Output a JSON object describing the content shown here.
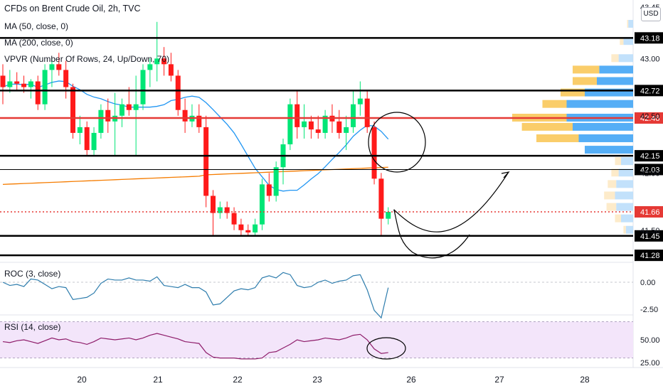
{
  "title": "CFDs on Brent Crude Oil, 2h, TVC",
  "indicators": {
    "ma50": "MA (50, close, 0)",
    "ma200": "MA (200, close, 0)",
    "vpvr": "VPVR (Number Of Rows, 24, Up/Down, 70)",
    "roc": "ROC (3, close)",
    "rsi": "RSI (14, close)"
  },
  "currency": "USD",
  "colors": {
    "up": "#26a69a",
    "up_bright": "#00e676",
    "down": "#ef5350",
    "down_bright": "#ff1a1a",
    "ma50": "#2196f3",
    "ma200": "#f57c00",
    "roc": "#2e7dad",
    "rsi": "#8e1c6a",
    "rsi_band": "#f3e5fa",
    "vpvr_up_strong": "#42a5f5",
    "vpvr_up_light": "#bbdefb",
    "vpvr_down_strong": "#f9c85a",
    "vpvr_down_light": "#fde9c4",
    "price_marker": "#e53935"
  },
  "chart_data": {
    "type": "candlestick",
    "symbol": "CFDs on Brent Crude Oil",
    "interval": "2h",
    "source": "TVC",
    "x_ticks": [
      "20",
      "21",
      "22",
      "23",
      "26",
      "27",
      "28"
    ],
    "price_ticks": [
      "43.45",
      "43.00",
      "42.50",
      "42.00",
      "41.50"
    ],
    "level_labels": [
      {
        "value": 43.18,
        "label": "43.18",
        "line_color": "#000000"
      },
      {
        "value": 42.72,
        "label": "42.72",
        "line_color": "#000000"
      },
      {
        "value": 42.48,
        "label": "42.48",
        "line_color": "#e53935"
      },
      {
        "value": 42.15,
        "label": "42.15",
        "line_color": "#000000"
      },
      {
        "value": 42.03,
        "label": "42.03",
        "line_color": "#000000"
      },
      {
        "value": 41.66,
        "label": "41.66",
        "line_color": "#e53935",
        "dotted": true
      },
      {
        "value": 41.45,
        "label": "41.45",
        "line_color": "#000000"
      },
      {
        "value": 41.28,
        "label": "41.28",
        "line_color": "#000000"
      }
    ],
    "candles": [
      {
        "o": 42.85,
        "h": 42.95,
        "l": 42.6,
        "c": 42.75
      },
      {
        "o": 42.75,
        "h": 42.9,
        "l": 42.7,
        "c": 42.8
      },
      {
        "o": 42.8,
        "h": 42.88,
        "l": 42.72,
        "c": 42.78
      },
      {
        "o": 42.78,
        "h": 42.85,
        "l": 42.7,
        "c": 42.75
      },
      {
        "o": 42.75,
        "h": 42.82,
        "l": 42.65,
        "c": 42.8
      },
      {
        "o": 42.8,
        "h": 42.85,
        "l": 42.55,
        "c": 42.6
      },
      {
        "o": 42.6,
        "h": 42.95,
        "l": 42.55,
        "c": 42.9
      },
      {
        "o": 42.9,
        "h": 43.0,
        "l": 42.75,
        "c": 42.95
      },
      {
        "o": 42.95,
        "h": 43.05,
        "l": 42.85,
        "c": 42.9
      },
      {
        "o": 42.9,
        "h": 42.98,
        "l": 42.65,
        "c": 42.75
      },
      {
        "o": 42.75,
        "h": 42.78,
        "l": 42.3,
        "c": 42.35
      },
      {
        "o": 42.35,
        "h": 42.5,
        "l": 42.25,
        "c": 42.4
      },
      {
        "o": 42.4,
        "h": 42.45,
        "l": 42.15,
        "c": 42.2
      },
      {
        "o": 42.2,
        "h": 42.4,
        "l": 42.15,
        "c": 42.35
      },
      {
        "o": 42.35,
        "h": 42.6,
        "l": 42.3,
        "c": 42.55
      },
      {
        "o": 42.55,
        "h": 42.65,
        "l": 42.35,
        "c": 42.45
      },
      {
        "o": 42.45,
        "h": 42.7,
        "l": 42.15,
        "c": 42.5
      },
      {
        "o": 42.5,
        "h": 42.65,
        "l": 42.4,
        "c": 42.6
      },
      {
        "o": 42.6,
        "h": 42.75,
        "l": 42.5,
        "c": 42.55
      },
      {
        "o": 42.55,
        "h": 42.85,
        "l": 42.15,
        "c": 42.6
      },
      {
        "o": 42.6,
        "h": 42.95,
        "l": 42.55,
        "c": 42.9
      },
      {
        "o": 42.9,
        "h": 43.0,
        "l": 42.75,
        "c": 42.95
      },
      {
        "o": 42.95,
        "h": 43.32,
        "l": 42.8,
        "c": 43.0
      },
      {
        "o": 43.0,
        "h": 43.1,
        "l": 42.85,
        "c": 42.95
      },
      {
        "o": 42.95,
        "h": 43.05,
        "l": 42.8,
        "c": 42.85
      },
      {
        "o": 42.85,
        "h": 42.9,
        "l": 42.5,
        "c": 42.55
      },
      {
        "o": 42.55,
        "h": 42.65,
        "l": 42.35,
        "c": 42.45
      },
      {
        "o": 42.45,
        "h": 42.6,
        "l": 42.4,
        "c": 42.5
      },
      {
        "o": 42.5,
        "h": 42.6,
        "l": 42.35,
        "c": 42.4
      },
      {
        "o": 42.4,
        "h": 42.5,
        "l": 41.7,
        "c": 41.8
      },
      {
        "o": 41.8,
        "h": 41.85,
        "l": 41.45,
        "c": 41.65
      },
      {
        "o": 41.65,
        "h": 41.75,
        "l": 41.6,
        "c": 41.7
      },
      {
        "o": 41.7,
        "h": 41.75,
        "l": 41.6,
        "c": 41.65
      },
      {
        "o": 41.65,
        "h": 41.7,
        "l": 41.5,
        "c": 41.55
      },
      {
        "o": 41.55,
        "h": 41.6,
        "l": 41.45,
        "c": 41.5
      },
      {
        "o": 41.5,
        "h": 41.55,
        "l": 41.45,
        "c": 41.48
      },
      {
        "o": 41.48,
        "h": 41.6,
        "l": 41.45,
        "c": 41.55
      },
      {
        "o": 41.55,
        "h": 41.95,
        "l": 41.5,
        "c": 41.9
      },
      {
        "o": 41.9,
        "h": 42.0,
        "l": 41.75,
        "c": 41.8
      },
      {
        "o": 41.8,
        "h": 42.1,
        "l": 41.75,
        "c": 42.05
      },
      {
        "o": 42.05,
        "h": 42.3,
        "l": 41.9,
        "c": 42.25
      },
      {
        "o": 42.25,
        "h": 42.65,
        "l": 42.2,
        "c": 42.6
      },
      {
        "o": 42.6,
        "h": 42.72,
        "l": 42.3,
        "c": 42.4
      },
      {
        "o": 42.4,
        "h": 42.6,
        "l": 42.3,
        "c": 42.45
      },
      {
        "o": 42.45,
        "h": 42.5,
        "l": 42.3,
        "c": 42.38
      },
      {
        "o": 42.38,
        "h": 42.5,
        "l": 42.3,
        "c": 42.35
      },
      {
        "o": 42.35,
        "h": 42.55,
        "l": 42.3,
        "c": 42.5
      },
      {
        "o": 42.5,
        "h": 42.6,
        "l": 42.35,
        "c": 42.45
      },
      {
        "o": 42.45,
        "h": 42.55,
        "l": 42.3,
        "c": 42.35
      },
      {
        "o": 42.35,
        "h": 42.5,
        "l": 42.2,
        "c": 42.4
      },
      {
        "o": 42.4,
        "h": 42.72,
        "l": 42.35,
        "c": 42.6
      },
      {
        "o": 42.6,
        "h": 42.8,
        "l": 42.5,
        "c": 42.65
      },
      {
        "o": 42.65,
        "h": 42.72,
        "l": 42.35,
        "c": 42.4
      },
      {
        "o": 42.4,
        "h": 42.45,
        "l": 41.9,
        "c": 41.95
      },
      {
        "o": 41.95,
        "h": 42.0,
        "l": 41.45,
        "c": 41.6
      },
      {
        "o": 41.6,
        "h": 41.7,
        "l": 41.55,
        "c": 41.66
      }
    ],
    "annotations": [
      {
        "type": "ellipse",
        "target": "price breakdown near 42.48"
      },
      {
        "type": "curved-arrow",
        "from": 41.66,
        "to": 42.03
      },
      {
        "type": "ellipse",
        "target": "RSI low"
      }
    ],
    "roc": {
      "name": "ROC (3, close)",
      "ticks": [
        "0.00",
        "-2.50"
      ],
      "values": [
        0.0,
        -0.3,
        -0.2,
        -0.4,
        0.3,
        0.2,
        -0.2,
        -0.6,
        -0.4,
        -0.5,
        -1.6,
        -1.5,
        -1.4,
        -1.0,
        -0.1,
        0.3,
        0.2,
        0.2,
        0.4,
        0.2,
        0.2,
        0.1,
        0.5,
        -0.3,
        -0.4,
        -0.5,
        -0.2,
        -0.5,
        -0.5,
        -0.9,
        -2.1,
        -2.0,
        -1.4,
        -0.8,
        -0.6,
        -0.7,
        -0.5,
        0.4,
        0.6,
        0.4,
        0.9,
        0.7,
        -0.3,
        -0.5,
        -0.4,
        0.0,
        0.2,
        -0.1,
        0.1,
        0.2,
        0.6,
        0.7,
        -0.7,
        -2.6,
        -3.3,
        -0.5
      ]
    },
    "rsi": {
      "name": "RSI (14, close)",
      "ticks": [
        "50.00",
        "25.00"
      ],
      "band": [
        30,
        70
      ],
      "values": [
        48,
        47,
        49,
        50,
        48,
        46,
        49,
        52,
        50,
        51,
        48,
        47,
        45,
        48,
        52,
        51,
        50,
        51,
        52,
        50,
        52,
        55,
        57,
        55,
        53,
        51,
        48,
        47,
        46,
        36,
        31,
        30,
        30,
        30,
        29,
        29,
        29,
        30,
        36,
        37,
        41,
        45,
        50,
        48,
        49,
        50,
        52,
        51,
        50,
        52,
        55,
        56,
        50,
        40,
        35,
        36
      ]
    },
    "vpvr": {
      "rows": [
        {
          "price": 43.45,
          "up": 0.0,
          "down": 0.0
        },
        {
          "price": 43.3,
          "up": 0.04,
          "down": 0.01
        },
        {
          "price": 43.15,
          "up": 0.08,
          "down": 0.03
        },
        {
          "price": 43.0,
          "up": 0.12,
          "down": 0.06
        },
        {
          "price": 42.9,
          "up": 0.28,
          "down": 0.22
        },
        {
          "price": 42.8,
          "up": 0.3,
          "down": 0.2
        },
        {
          "price": 42.7,
          "up": 0.4,
          "down": 0.2
        },
        {
          "price": 42.6,
          "up": 0.55,
          "down": 0.2
        },
        {
          "price": 42.48,
          "up": 0.55,
          "down": 0.45
        },
        {
          "price": 42.4,
          "up": 0.5,
          "down": 0.42
        },
        {
          "price": 42.3,
          "up": 0.45,
          "down": 0.35
        },
        {
          "price": 42.2,
          "up": 0.4,
          "down": 0.0
        },
        {
          "price": 42.1,
          "up": 0.1,
          "down": 0.05
        },
        {
          "price": 42.0,
          "up": 0.12,
          "down": 0.06
        },
        {
          "price": 41.9,
          "up": 0.14,
          "down": 0.07
        },
        {
          "price": 41.8,
          "up": 0.15,
          "down": 0.09
        },
        {
          "price": 41.7,
          "up": 0.14,
          "down": 0.08
        },
        {
          "price": 41.6,
          "up": 0.1,
          "down": 0.05
        },
        {
          "price": 41.5,
          "up": 0.06,
          "down": 0.02
        }
      ]
    }
  }
}
